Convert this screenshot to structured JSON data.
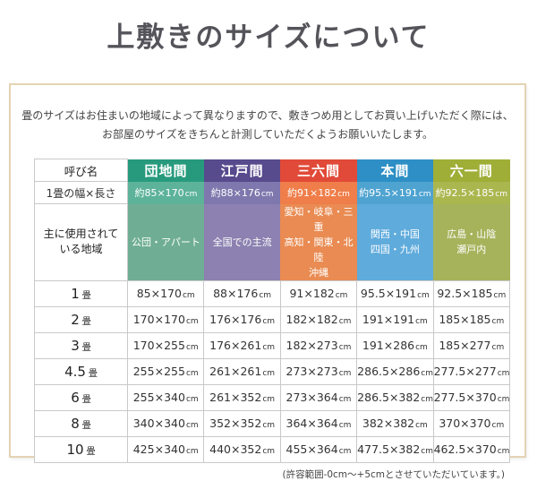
{
  "page": {
    "title": "上敷きのサイズについて",
    "intro_lines": [
      "畳のサイズはお住まいの地域によって異なりますので、敷きつめ用としてお買い上げいただく際には、",
      "お部屋のサイズをきちんと計測していただくようお願いいたします。"
    ],
    "footnote": "(許容範囲-0cm～+5cmとさせていただいています。)"
  },
  "colors": {
    "box_border": "#e4d3b3",
    "cell_border": "#c9c9c9",
    "title_text": "#54545a"
  },
  "table": {
    "corner_label": "呼び名",
    "columns": [
      {
        "id": "danchima",
        "name": "団地間",
        "header_color": "#279a7d",
        "size_color": "#5db39a",
        "region_color": "#6fae94"
      },
      {
        "id": "edoma",
        "name": "江戸間",
        "header_color": "#574a8d",
        "size_color": "#7f78ae",
        "region_color": "#8c81b0"
      },
      {
        "id": "sanrokuma",
        "name": "三六間",
        "header_color": "#e14a38",
        "size_color": "#ef7e4a",
        "region_color": "#e98b52"
      },
      {
        "id": "honma",
        "name": "本間",
        "header_color": "#2d8fc5",
        "size_color": "#4fa3d1",
        "region_color": "#5fabdc"
      },
      {
        "id": "rokuichima",
        "name": "六一間",
        "header_color": "#9fae37",
        "size_color": "#aab74f",
        "region_color": "#a6b35b"
      }
    ],
    "size_row": {
      "label": "1畳の幅×長さ",
      "values": [
        "約85×170cm",
        "約88×176cm",
        "約91×182cm",
        "約95.5×191cm",
        "約92.5×185cm"
      ]
    },
    "region_row": {
      "label_lines": [
        "主に使用されて",
        "いる地域"
      ],
      "values": [
        [
          "公団・アパート"
        ],
        [
          "全国での主流"
        ],
        [
          "愛知・岐阜・三重",
          "高知・関東・北陸",
          "沖縄"
        ],
        [
          "関西・中国",
          "四国・九州"
        ],
        [
          "広島・山陰",
          "瀬戸内"
        ]
      ]
    },
    "rows": [
      {
        "label": "1畳",
        "values": [
          "85×170cm",
          "88×176cm",
          "91×182cm",
          "95.5×191cm",
          "92.5×185cm"
        ]
      },
      {
        "label": "2畳",
        "values": [
          "170×170cm",
          "176×176cm",
          "182×182cm",
          "191×191cm",
          "185×185cm"
        ]
      },
      {
        "label": "3畳",
        "values": [
          "170×255cm",
          "176×261cm",
          "182×273cm",
          "191×286cm",
          "185×277cm"
        ]
      },
      {
        "label": "4.5畳",
        "values": [
          "255×255cm",
          "261×261cm",
          "273×273cm",
          "286.5×286cm",
          "277.5×277cm"
        ]
      },
      {
        "label": "6畳",
        "values": [
          "255×340cm",
          "261×352cm",
          "273×364cm",
          "286.5×382cm",
          "277.5×370cm"
        ]
      },
      {
        "label": "8畳",
        "values": [
          "340×340cm",
          "352×352cm",
          "364×364cm",
          "382×382cm",
          "370×370cm"
        ]
      },
      {
        "label": "10畳",
        "values": [
          "425×340cm",
          "440×352cm",
          "455×364cm",
          "477.5×382cm",
          "462.5×370cm"
        ]
      }
    ]
  }
}
